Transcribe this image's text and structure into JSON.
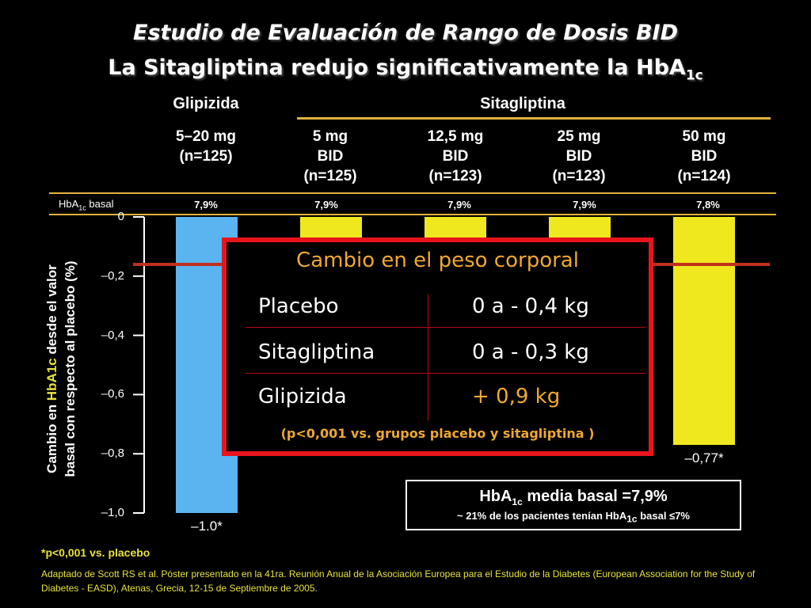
{
  "title_line1": "Estudio de Evaluación de Rango de Dosis BID",
  "title_line2_main": "La Sitagliptina redujo significativamente la HbA",
  "title_line2_sub": "1c",
  "groups": {
    "glipizida": "Glipizida",
    "sitagliptina": "Sitagliptina"
  },
  "doses": [
    {
      "l1": "5–20 mg",
      "l2": "(n=125)",
      "l3": ""
    },
    {
      "l1": "5 mg",
      "l2": "BID",
      "l3": "(n=125)"
    },
    {
      "l1": "12,5 mg",
      "l2": "BID",
      "l3": "(n=123)"
    },
    {
      "l1": "25 mg",
      "l2": "BID",
      "l3": "(n=123)"
    },
    {
      "l1": "50 mg",
      "l2": "BID",
      "l3": "(n=124)"
    }
  ],
  "basal_label_main": "HbA",
  "basal_label_sub": "1c",
  "basal_label_tail": " basal",
  "basal_values": [
    "7,9%",
    "7,9%",
    "7,9%",
    "7,9%",
    "7,8%"
  ],
  "ylabel_line1_pre": "Cambio en ",
  "ylabel_line1_hl": "HbA1c",
  "ylabel_line1_post": " desde el valor",
  "ylabel_line2": "basal con respecto al placebo (%)",
  "chart_data": {
    "type": "bar",
    "categories": [
      "Glipizida 5–20 mg",
      "Sitagliptina 5 mg BID",
      "Sitagliptina 12,5 mg BID",
      "Sitagliptina 25 mg BID",
      "Sitagliptina 50 mg BID"
    ],
    "values": [
      -1.0,
      null,
      null,
      null,
      -0.77
    ],
    "value_labels": [
      "–1.0*",
      "",
      "",
      "",
      "–0,77*"
    ],
    "bar_colors": [
      "#5ab4f0",
      "#f0e81e",
      "#f0e81e",
      "#f0e81e",
      "#f0e81e"
    ],
    "yticks": [
      0,
      -0.2,
      -0.4,
      -0.6,
      -0.8,
      -1.0
    ],
    "ytick_labels": [
      "0",
      "–0,2",
      "–0,4",
      "–0,6",
      "–0,8",
      "–1,0"
    ],
    "ylim": [
      -1.0,
      0
    ],
    "ylabel": "Cambio en HbA1c desde el valor basal con respecto al placebo (%)",
    "grid": false
  },
  "popup": {
    "title": "Cambio en el peso corporal",
    "rows": [
      {
        "name": "Placebo",
        "value": "0 a - 0,4 kg",
        "color": "#ffffff"
      },
      {
        "name": "Sitagliptina",
        "value": "0 a - 0,3 kg",
        "color": "#ffffff"
      },
      {
        "name": "Glipizida",
        "value": "+  0,9 kg",
        "color": "#f0a830"
      }
    ],
    "note": "(p<0,001 vs. grupos placebo y sitagliptina )"
  },
  "info_box": {
    "line1_pre": "HbA",
    "line1_sub": "1c",
    "line1_post": " media basal =7,9%",
    "line2_pre": "~ 21% de los pacientes tenían HbA",
    "line2_sub": "1c",
    "line2_post": " basal ≤7%"
  },
  "footnote_sig": "*p<0,001 vs. placebo",
  "footnote_source": "Adaptado de Scott RS et al. Póster presentado en la 41ra. Reunión Anual de la Asociación Europea para el Estudio de la Diabetes (European Association for the Study of Diabetes - EASD), Atenas, Grecia, 12-15 de Septiembre de 2005."
}
